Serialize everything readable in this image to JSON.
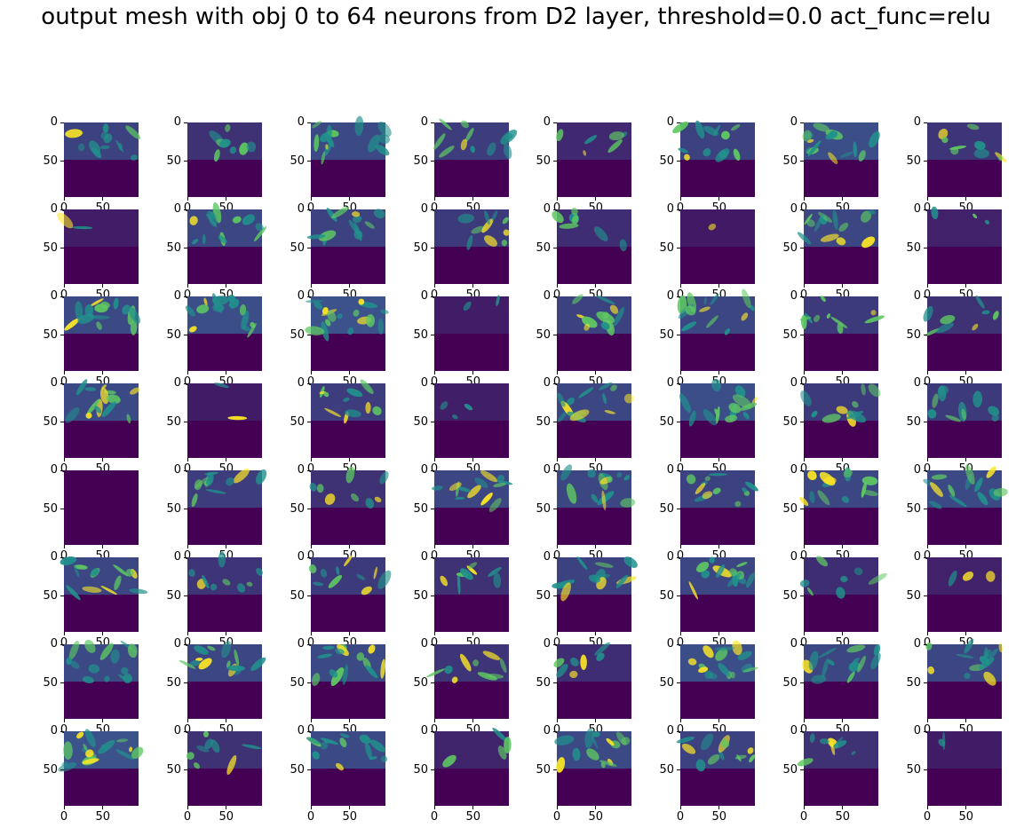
{
  "figure": {
    "title": "output mesh with obj 0 to 64 neurons from D2 layer, threshold=0.0 act_func=relu",
    "colormap": "viridis",
    "colors": {
      "background": "#440154",
      "low": "#3b528b",
      "mid": "#21918c",
      "high": "#5ec962",
      "peak": "#fde725"
    }
  },
  "chart_data": {
    "type": "heatmap",
    "title": "output mesh with obj 0 to 64 neurons from D2 layer, threshold=0.0 act_func=relu",
    "rows": 8,
    "cols": 8,
    "panel_count": 64,
    "image_size": [
      96,
      96
    ],
    "xlim": [
      0,
      96
    ],
    "ylim": [
      96,
      0
    ],
    "xticks": [
      0,
      50
    ],
    "yticks": [
      0,
      50
    ],
    "xtick_labels": [
      "0",
      "50"
    ],
    "ytick_labels": [
      "0",
      "50"
    ],
    "active_band_rows": [
      0,
      48
    ],
    "colormap": "viridis",
    "grid": false,
    "panel_intensity": [
      0.55,
      0.35,
      0.65,
      0.5,
      0.25,
      0.55,
      0.7,
      0.4,
      0.1,
      0.6,
      0.55,
      0.45,
      0.3,
      0.05,
      0.6,
      0.15,
      0.65,
      0.7,
      0.75,
      0.1,
      0.55,
      0.6,
      0.45,
      0.35,
      0.65,
      0.08,
      0.5,
      0.12,
      0.6,
      0.7,
      0.45,
      0.45,
      0.0,
      0.5,
      0.35,
      0.6,
      0.6,
      0.55,
      0.6,
      0.65,
      0.6,
      0.4,
      0.45,
      0.35,
      0.55,
      0.6,
      0.3,
      0.15,
      0.65,
      0.6,
      0.65,
      0.4,
      0.3,
      0.7,
      0.6,
      0.6,
      0.75,
      0.35,
      0.65,
      0.2,
      0.65,
      0.55,
      0.35,
      0.08
    ]
  }
}
